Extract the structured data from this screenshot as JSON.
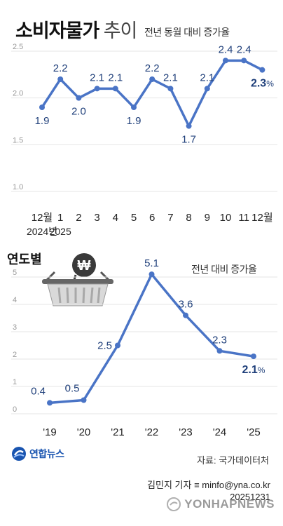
{
  "header": {
    "title_bold": "소비자물가",
    "title_light": "추이",
    "subtitle": "전년 동월 대비 증가율"
  },
  "colors": {
    "line": "#4a74c6",
    "grid": "#e6e6e6",
    "label": "#1f3f7a",
    "axis_text": "#222222",
    "tick_text": "#9a9a9a"
  },
  "chart_data": [
    {
      "type": "line",
      "categories": [
        "12월",
        "1",
        "2",
        "3",
        "4",
        "5",
        "6",
        "7",
        "8",
        "9",
        "10",
        "11",
        "12월"
      ],
      "category_sublabels": [
        "2024년",
        "2025",
        "",
        "",
        "",
        "",
        "",
        "",
        "",
        "",
        "",
        "",
        ""
      ],
      "values": [
        1.9,
        2.2,
        2.0,
        2.1,
        2.1,
        1.9,
        2.2,
        2.1,
        1.7,
        2.1,
        2.4,
        2.4,
        2.3
      ],
      "value_labels": [
        "1.9",
        "2.2",
        "2.0",
        "2.1",
        "2.1",
        "1.9",
        "2.2",
        "2.1",
        "1.7",
        "2.1",
        "2.4",
        "2.4",
        "2.3"
      ],
      "label_positions": [
        "below",
        "above",
        "below",
        "above",
        "above",
        "below",
        "above",
        "above",
        "below",
        "above",
        "above",
        "above",
        "below"
      ],
      "last_label_suffix": "%",
      "yticks": [
        "2.5",
        "2.0",
        "1.5",
        "1.0"
      ],
      "ylim": [
        1.0,
        2.5
      ],
      "grid": true
    },
    {
      "type": "line",
      "title": "연도별",
      "subtitle": "전년 대비 증가율",
      "categories": [
        "'19",
        "'20",
        "'21",
        "'22",
        "'23",
        "'24",
        "'25"
      ],
      "values": [
        0.4,
        0.5,
        2.5,
        5.1,
        3.6,
        2.3,
        2.1
      ],
      "value_labels": [
        "0.4",
        "0.5",
        "2.5",
        "5.1",
        "3.6",
        "2.3",
        "2.1"
      ],
      "label_positions": [
        "above-left",
        "above-left",
        "left",
        "above",
        "above",
        "above",
        "below"
      ],
      "last_label_suffix": "%",
      "yticks": [
        "5",
        "4",
        "3",
        "2",
        "1",
        "0"
      ],
      "ylim": [
        0,
        5
      ],
      "grid": true
    }
  ],
  "footer": {
    "logo_text": "연합뉴스",
    "source": "자료: 국가데이터처",
    "credit_line1": "김민지 기자 ≡ minfo@yna.co.kr",
    "credit_line2": "20251231",
    "watermark": "YONHAPNEWS"
  }
}
